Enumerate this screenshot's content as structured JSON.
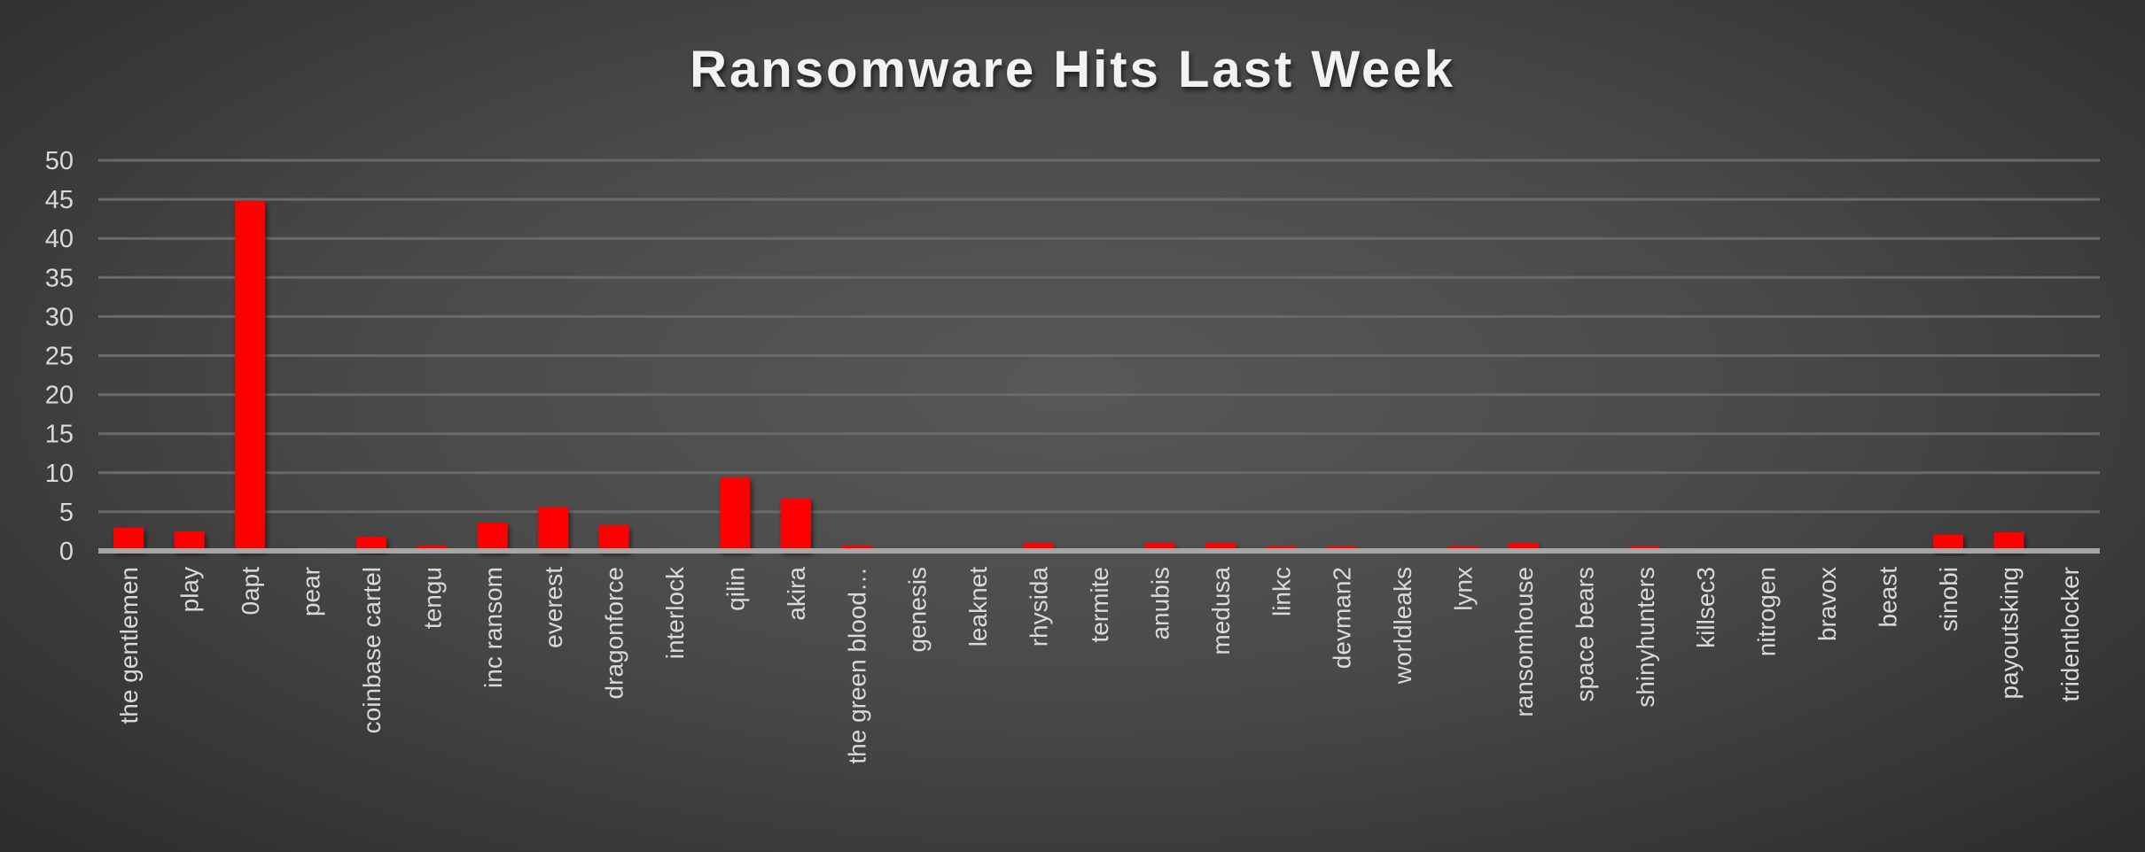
{
  "chart_data": {
    "type": "bar",
    "title": "Ransomware Hits Last Week",
    "xlabel": "",
    "ylabel": "",
    "ylim": [
      0,
      50
    ],
    "yticks": [
      0,
      5,
      10,
      15,
      20,
      25,
      30,
      35,
      40,
      45,
      50
    ],
    "grid": true,
    "legend": "none",
    "bar_color": "#ff0000",
    "categories": [
      "the gentlemen",
      "play",
      "0apt",
      "pear",
      "coinbase cartel",
      "tengu",
      "inc ransom",
      "everest",
      "dragonforce",
      "interlock",
      "qilin",
      "akira",
      "the green blood…",
      "genesis",
      "leaknet",
      "rhysida",
      "termite",
      "anubis",
      "medusa",
      "linkc",
      "devman2",
      "worldleaks",
      "lynx",
      "ransomhouse",
      "space bears",
      "shinyhunters",
      "killsec3",
      "nitrogen",
      "bravox",
      "beast",
      "sinobi",
      "payoutsking",
      "tridentlocker"
    ],
    "values": [
      3.0,
      2.5,
      44.8,
      0.1,
      1.8,
      0.7,
      3.6,
      5.6,
      3.3,
      0.1,
      9.4,
      6.7,
      0.7,
      0.1,
      0.1,
      1.0,
      0.1,
      1.0,
      1.0,
      0.6,
      0.6,
      0.1,
      0.6,
      1.0,
      0.1,
      0.6,
      0.1,
      0.1,
      0.1,
      0.1,
      2.1,
      2.4,
      0.1
    ]
  }
}
